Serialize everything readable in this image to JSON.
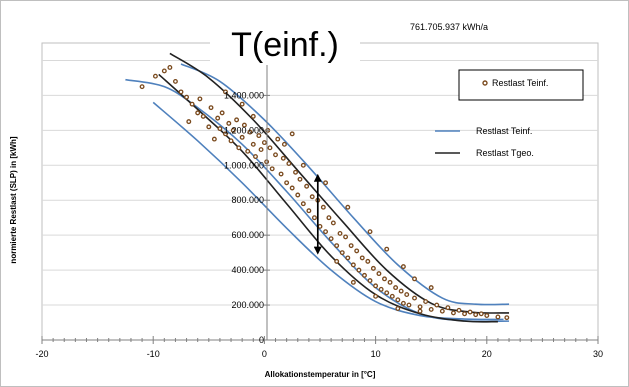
{
  "chart_data": {
    "type": "scatter",
    "title": "T(einf.)",
    "annotation": "761.705.937  kWh/a",
    "xlabel": "Allokationstemperatur in [°C]",
    "ylabel": "normierte Restlast (SLP) in [kWh]",
    "xlim": [
      -20,
      30
    ],
    "ylim": [
      0,
      1700000
    ],
    "x_ticks": [
      -20,
      -10,
      0,
      10,
      20,
      30
    ],
    "x_tick_labels": [
      "-20",
      "-10",
      "0",
      "10",
      "20",
      "30"
    ],
    "y_ticks": [
      0,
      200000,
      400000,
      600000,
      800000,
      1000000,
      1200000,
      1400000,
      1600000
    ],
    "y_tick_labels": [
      "0",
      "200.000",
      "400.000",
      "600.000",
      "800.000",
      "1.000.000",
      "1.200.000",
      "1.400.000",
      "1.600.000"
    ],
    "grid": "horizontal",
    "legend_placement": "right",
    "legend": [
      {
        "label": "Restlast Teinf.",
        "marker": "dot",
        "color": "#7a4a1e"
      },
      {
        "label": "Restlast Teinf.",
        "marker": "line",
        "color": "#4f81bd"
      },
      {
        "label": "Restlast Tgeo.",
        "marker": "line",
        "color": "#222222"
      }
    ],
    "series": [
      {
        "name": "Restlast Teinf.",
        "kind": "scatter",
        "color": "#7a4a1e",
        "points": [
          [
            -11.0,
            1450000
          ],
          [
            -9.8,
            1510000
          ],
          [
            -9.0,
            1540000
          ],
          [
            -8.5,
            1560000
          ],
          [
            -8.0,
            1480000
          ],
          [
            -7.5,
            1420000
          ],
          [
            -7.0,
            1390000
          ],
          [
            -6.8,
            1250000
          ],
          [
            -6.5,
            1350000
          ],
          [
            -6.0,
            1300000
          ],
          [
            -5.8,
            1380000
          ],
          [
            -5.5,
            1280000
          ],
          [
            -5.0,
            1220000
          ],
          [
            -4.8,
            1330000
          ],
          [
            -4.5,
            1150000
          ],
          [
            -4.2,
            1270000
          ],
          [
            -4.0,
            1210000
          ],
          [
            -3.8,
            1300000
          ],
          [
            -3.5,
            1180000
          ],
          [
            -3.2,
            1240000
          ],
          [
            -3.0,
            1140000
          ],
          [
            -2.8,
            1200000
          ],
          [
            -2.5,
            1260000
          ],
          [
            -2.3,
            1100000
          ],
          [
            -2.0,
            1160000
          ],
          [
            -1.8,
            1230000
          ],
          [
            -1.5,
            1080000
          ],
          [
            -1.3,
            1190000
          ],
          [
            -1.0,
            1120000
          ],
          [
            -0.8,
            1050000
          ],
          [
            -0.5,
            1170000
          ],
          [
            -0.3,
            1090000
          ],
          [
            0.0,
            1130000
          ],
          [
            0.2,
            1020000
          ],
          [
            0.5,
            1100000
          ],
          [
            0.7,
            980000
          ],
          [
            1.0,
            1060000
          ],
          [
            1.2,
            1150000
          ],
          [
            1.5,
            950000
          ],
          [
            1.7,
            1040000
          ],
          [
            2.0,
            900000
          ],
          [
            2.2,
            1010000
          ],
          [
            2.5,
            870000
          ],
          [
            2.8,
            960000
          ],
          [
            3.0,
            830000
          ],
          [
            3.2,
            920000
          ],
          [
            3.5,
            780000
          ],
          [
            3.8,
            880000
          ],
          [
            4.0,
            740000
          ],
          [
            4.3,
            820000
          ],
          [
            4.5,
            700000
          ],
          [
            4.8,
            800000
          ],
          [
            5.0,
            650000
          ],
          [
            5.3,
            760000
          ],
          [
            5.5,
            620000
          ],
          [
            5.8,
            700000
          ],
          [
            6.0,
            580000
          ],
          [
            6.2,
            670000
          ],
          [
            6.5,
            540000
          ],
          [
            6.8,
            610000
          ],
          [
            7.0,
            500000
          ],
          [
            7.3,
            590000
          ],
          [
            7.5,
            470000
          ],
          [
            7.8,
            540000
          ],
          [
            8.0,
            430000
          ],
          [
            8.3,
            510000
          ],
          [
            8.5,
            400000
          ],
          [
            8.8,
            470000
          ],
          [
            9.0,
            370000
          ],
          [
            9.3,
            450000
          ],
          [
            9.5,
            340000
          ],
          [
            9.8,
            410000
          ],
          [
            10.0,
            310000
          ],
          [
            10.3,
            380000
          ],
          [
            10.5,
            290000
          ],
          [
            10.8,
            350000
          ],
          [
            11.0,
            270000
          ],
          [
            11.3,
            330000
          ],
          [
            11.5,
            250000
          ],
          [
            11.8,
            300000
          ],
          [
            12.0,
            230000
          ],
          [
            12.3,
            280000
          ],
          [
            12.5,
            210000
          ],
          [
            12.8,
            260000
          ],
          [
            13.0,
            200000
          ],
          [
            13.5,
            240000
          ],
          [
            14.0,
            190000
          ],
          [
            14.5,
            220000
          ],
          [
            15.0,
            175000
          ],
          [
            15.5,
            200000
          ],
          [
            16.0,
            165000
          ],
          [
            16.5,
            185000
          ],
          [
            17.0,
            155000
          ],
          [
            17.5,
            170000
          ],
          [
            18.0,
            150000
          ],
          [
            18.5,
            160000
          ],
          [
            19.0,
            145000
          ],
          [
            19.5,
            150000
          ],
          [
            20.0,
            140000
          ],
          [
            21.0,
            132000
          ],
          [
            21.8,
            128000
          ],
          [
            -2.0,
            1350000
          ],
          [
            -1.0,
            1280000
          ],
          [
            0.3,
            1200000
          ],
          [
            1.8,
            1120000
          ],
          [
            3.5,
            1000000
          ],
          [
            5.5,
            900000
          ],
          [
            7.5,
            760000
          ],
          [
            9.5,
            620000
          ],
          [
            11.0,
            520000
          ],
          [
            12.5,
            420000
          ],
          [
            13.5,
            350000
          ],
          [
            15.0,
            300000
          ],
          [
            6.5,
            450000
          ],
          [
            8.0,
            330000
          ],
          [
            10.0,
            250000
          ],
          [
            12.0,
            180000
          ],
          [
            14.0,
            165000
          ],
          [
            -3.5,
            1420000
          ],
          [
            2.5,
            1180000
          ]
        ]
      },
      {
        "name": "Restlast Teinf.",
        "kind": "line",
        "color": "#4f81bd",
        "curves": [
          [
            [
              -12.5,
              1490000
            ],
            [
              -9.0,
              1450000
            ],
            [
              -6.0,
              1330000
            ],
            [
              -2.0,
              1120000
            ],
            [
              2.0,
              850000
            ],
            [
              6.0,
              560000
            ],
            [
              10.0,
              300000
            ],
            [
              14.0,
              150000
            ],
            [
              18.0,
              110000
            ],
            [
              22.0,
              108000
            ]
          ],
          [
            [
              -7.5,
              1580000
            ],
            [
              -4.0,
              1480000
            ],
            [
              0.0,
              1260000
            ],
            [
              4.0,
              990000
            ],
            [
              8.0,
              700000
            ],
            [
              12.0,
              430000
            ],
            [
              16.0,
              240000
            ],
            [
              19.0,
              205000
            ],
            [
              22.0,
              205000
            ]
          ],
          [
            [
              -10.0,
              1360000
            ],
            [
              -6.0,
              1140000
            ],
            [
              -2.0,
              900000
            ],
            [
              2.0,
              640000
            ],
            [
              6.0,
              400000
            ],
            [
              10.0,
              220000
            ],
            [
              14.0,
              140000
            ],
            [
              18.0,
              120000
            ],
            [
              21.5,
              118000
            ]
          ]
        ]
      },
      {
        "name": "Restlast Tgeo.",
        "kind": "line",
        "color": "#222222",
        "curves": [
          [
            [
              -8.5,
              1640000
            ],
            [
              -5.0,
              1500000
            ],
            [
              -1.0,
              1260000
            ],
            [
              3.0,
              970000
            ],
            [
              7.0,
              680000
            ],
            [
              11.0,
              400000
            ],
            [
              15.0,
              210000
            ],
            [
              18.5,
              160000
            ],
            [
              22.0,
              155000
            ]
          ],
          [
            [
              -9.5,
              1520000
            ],
            [
              -6.0,
              1320000
            ],
            [
              -2.0,
              1080000
            ],
            [
              2.0,
              780000
            ],
            [
              6.0,
              480000
            ],
            [
              10.0,
              260000
            ],
            [
              14.0,
              150000
            ],
            [
              18.0,
              108000
            ],
            [
              21.0,
              105000
            ]
          ]
        ]
      }
    ],
    "arrows": [
      {
        "from": [
          4.8,
          500000
        ],
        "to": [
          4.8,
          940000
        ],
        "color": "#000000"
      },
      {
        "from": [
          4.8,
          940000
        ],
        "to": [
          4.8,
          500000
        ],
        "color": "#000000"
      }
    ]
  }
}
